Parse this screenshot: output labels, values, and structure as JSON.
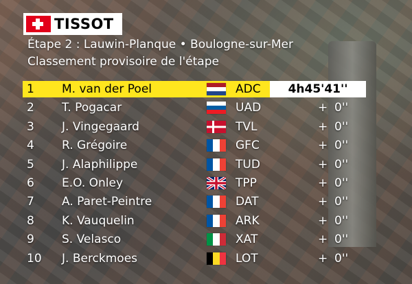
{
  "brand": {
    "logo_text": "TISSOT"
  },
  "header": {
    "title": "Étape 2 : Lauwin-Planque • Boulogne-sur-Mer",
    "subtitle": "Classement provisoire de l'étape"
  },
  "colors": {
    "leader_bg": "#ffe61e",
    "time_bg": "#ffffff",
    "brand_red": "#e2001a"
  },
  "rows": [
    {
      "rank": "1",
      "name": "M. van der Poel",
      "flag": "netherlands-flag",
      "team": "ADC",
      "time": "4h45'41''",
      "plus": "",
      "gap": ""
    },
    {
      "rank": "2",
      "name": "T. Pogacar",
      "flag": "slovenia-flag",
      "team": "UAD",
      "time": "",
      "plus": "+",
      "gap": "0''"
    },
    {
      "rank": "3",
      "name": "J. Vingegaard",
      "flag": "denmark-flag",
      "team": "TVL",
      "time": "",
      "plus": "+",
      "gap": "0''"
    },
    {
      "rank": "4",
      "name": "R. Grégoire",
      "flag": "france-flag",
      "team": "GFC",
      "time": "",
      "plus": "+",
      "gap": "0''"
    },
    {
      "rank": "5",
      "name": "J. Alaphilippe",
      "flag": "france-flag",
      "team": "TUD",
      "time": "",
      "plus": "+",
      "gap": "0''"
    },
    {
      "rank": "6",
      "name": "E.O. Onley",
      "flag": "uk-flag",
      "team": "TPP",
      "time": "",
      "plus": "+",
      "gap": "0''"
    },
    {
      "rank": "7",
      "name": "A. Paret-Peintre",
      "flag": "france-flag",
      "team": "DAT",
      "time": "",
      "plus": "+",
      "gap": "0''"
    },
    {
      "rank": "8",
      "name": "K. Vauquelin",
      "flag": "france-flag",
      "team": "ARK",
      "time": "",
      "plus": "+",
      "gap": "0''"
    },
    {
      "rank": "9",
      "name": "S. Velasco",
      "flag": "italy-flag",
      "team": "XAT",
      "time": "",
      "plus": "+",
      "gap": "0''"
    },
    {
      "rank": "10",
      "name": "J. Berckmoes",
      "flag": "belgium-flag",
      "team": "LOT",
      "time": "",
      "plus": "+",
      "gap": "0''"
    }
  ]
}
